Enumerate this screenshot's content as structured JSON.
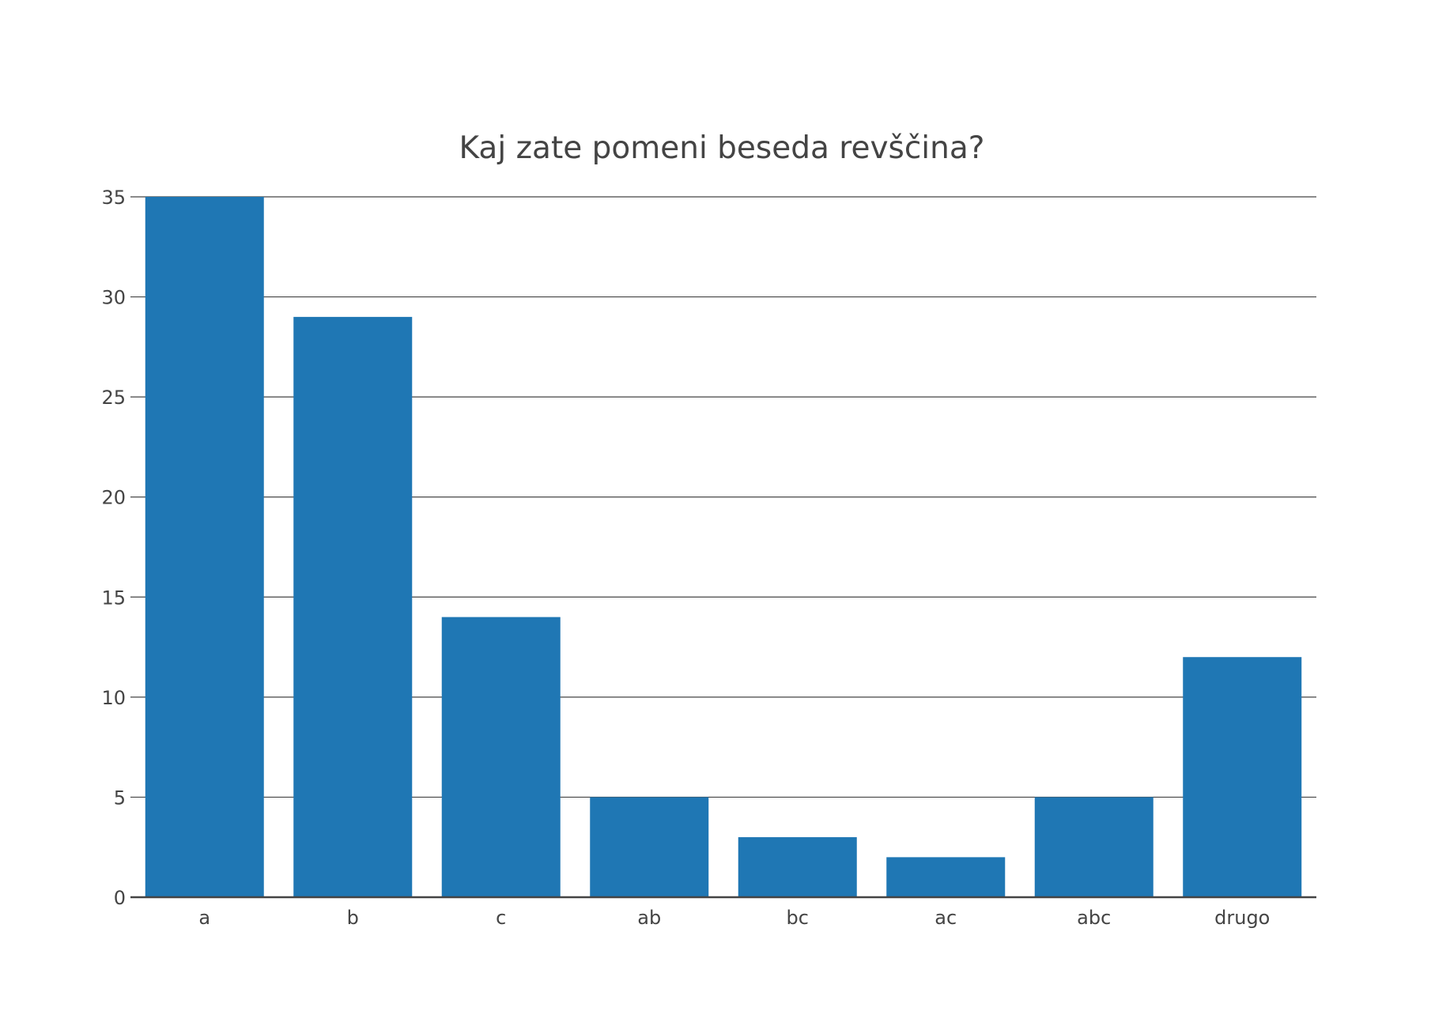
{
  "chart_data": {
    "type": "bar",
    "title": "Kaj zate pomeni beseda revščina?",
    "xlabel": "",
    "ylabel": "",
    "categories": [
      "a",
      "b",
      "c",
      "ab",
      "bc",
      "ac",
      "abc",
      "drugo"
    ],
    "values": [
      35,
      29,
      14,
      5,
      3,
      2,
      5,
      12
    ],
    "ylim": [
      0,
      35
    ],
    "yticks": [
      0,
      5,
      10,
      15,
      20,
      25,
      30,
      35
    ],
    "grid": true,
    "legend": "none",
    "bar_color": "#1f77b4"
  }
}
